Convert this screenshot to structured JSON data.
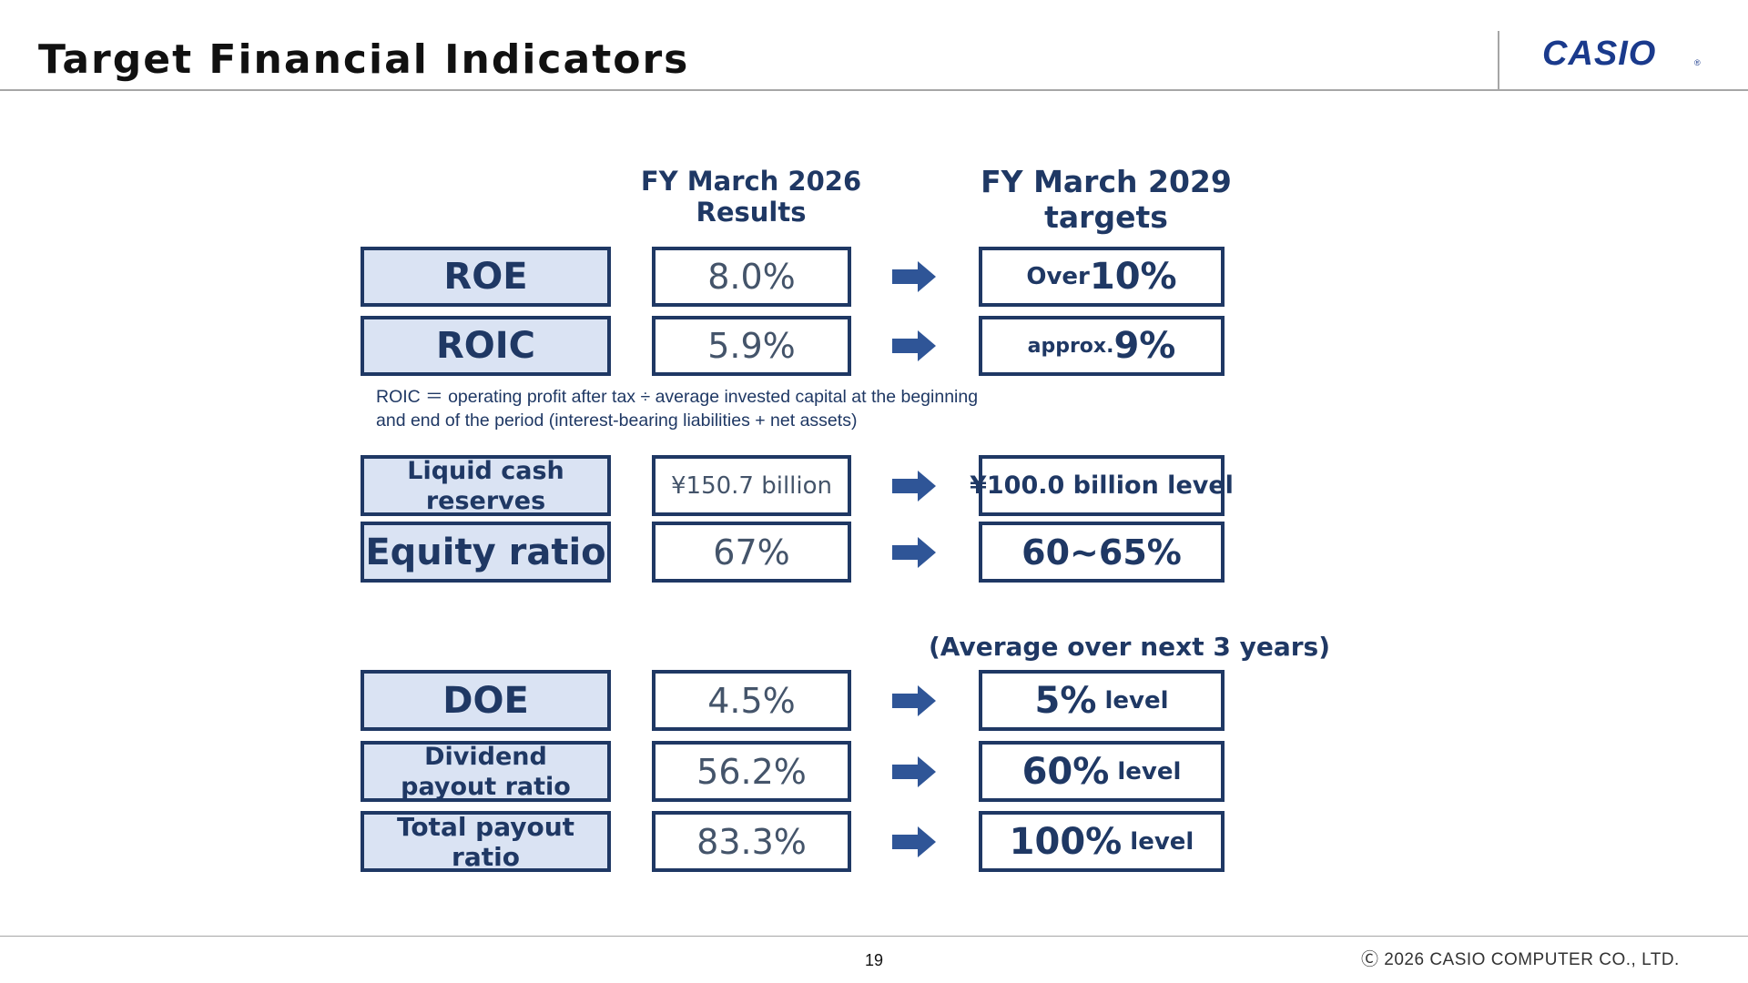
{
  "header": {
    "title": "Target Financial Indicators",
    "logo_text": "CASIO",
    "logo_mark": "®"
  },
  "columns": {
    "results_line1": "FY March 2026",
    "results_line2": "Results",
    "targets_line1": "FY March 2029",
    "targets_line2": "targets"
  },
  "rows": {
    "roe": {
      "label": "ROE",
      "result": "8.0%",
      "target_prefix": "Over",
      "target_main": "10%"
    },
    "roic": {
      "label": "ROIC",
      "result": "5.9%",
      "target_prefix": "approx. ",
      "target_main": "9%"
    },
    "cash": {
      "label_line1": "Liquid cash",
      "label_line2": "reserves",
      "result": "¥150.7 billion",
      "target": "¥100.0 billion level"
    },
    "equity": {
      "label": "Equity ratio",
      "result": "67%",
      "target": "60~65%"
    },
    "doe": {
      "label": "DOE",
      "result": "4.5%",
      "target_main": "5%",
      "target_suffix": " level"
    },
    "dividend": {
      "label_line1": "Dividend",
      "label_line2": "payout ratio",
      "result": "56.2%",
      "target_main": "60%",
      "target_suffix": " level"
    },
    "total": {
      "label": "Total payout ratio",
      "result": "83.3%",
      "target_main": "100%",
      "target_suffix": " level"
    }
  },
  "roic_note_line1": "ROIC ＝ operating profit after tax ÷ average invested capital at the beginning",
  "roic_note_line2": "and end of the period (interest-bearing liabilities + net assets)",
  "average_note": "(Average over next 3 years)",
  "footer": {
    "page_number": "19",
    "copyright": "Ⓒ 2026 CASIO COMPUTER CO., LTD."
  },
  "colors": {
    "navy": "#1f3864",
    "label_fill": "#dae3f3",
    "arrow": "#2f5597",
    "logo": "#1a3a8c"
  },
  "icons": {
    "arrow": "right-arrow-icon"
  }
}
